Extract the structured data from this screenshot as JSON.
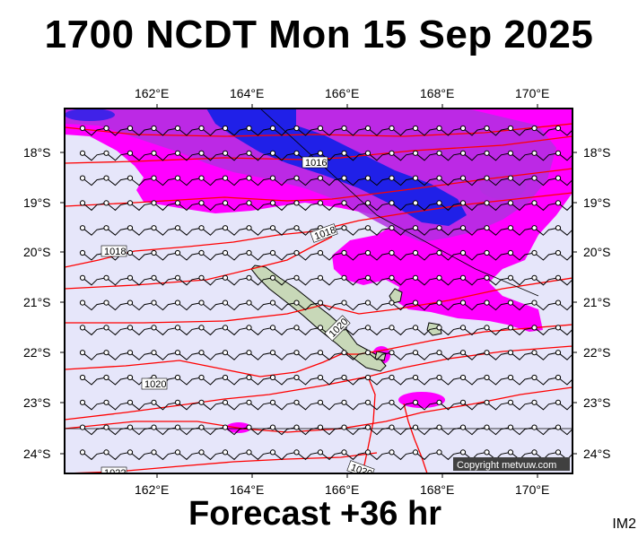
{
  "title": "1700 NCDT Mon 15 Sep 2025",
  "footer": "Forecast +36 hr",
  "code": "IM2",
  "copyright": "Copyright metvuw.com",
  "lon_labels": [
    "162°E",
    "164°E",
    "166°E",
    "168°E",
    "170°E"
  ],
  "lat_labels": [
    "18°S",
    "19°S",
    "20°S",
    "21°S",
    "22°S",
    "23°S",
    "24°S"
  ],
  "isobar_labels": [
    "1016",
    "1018",
    "1018",
    "1020",
    "1020",
    "1020",
    "1022"
  ],
  "colors": {
    "background_sea": "#e6e6fa",
    "rain_light": "#ff00ff",
    "rain_medium": "#b030e0",
    "rain_heavy": "#1010e0",
    "isobar": "#ff0000",
    "land": "#c8d8b8"
  }
}
